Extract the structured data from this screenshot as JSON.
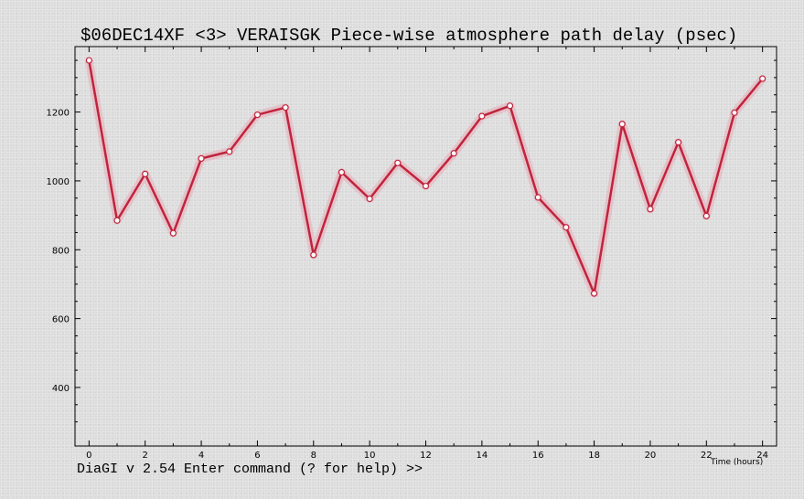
{
  "title": "$06DEC14XF <3>  VERAISGK  Piece-wise atmosphere path delay (psec)",
  "status_line": "DiaGI v 2.54  Enter command (? for help) >>",
  "colors": {
    "line": "#c0243c",
    "halo": "#e8a0b0",
    "marker_fill": "#ffffff",
    "frame": "#000000"
  },
  "chart_data": {
    "type": "line",
    "title": "$06DEC14XF <3>  VERAISGK  Piece-wise atmosphere path delay (psec)",
    "xlabel": "Time (hours)",
    "ylabel": "",
    "xlim": [
      -0.5,
      24.5
    ],
    "ylim": [
      230,
      1390
    ],
    "x_ticks": [
      0,
      2,
      4,
      6,
      8,
      10,
      12,
      14,
      16,
      18,
      20,
      22,
      24
    ],
    "y_ticks": [
      400,
      600,
      800,
      1000,
      1200
    ],
    "grid": false,
    "series": [
      {
        "x": [
          0,
          1,
          2,
          3,
          4,
          5,
          6,
          7,
          8,
          9,
          10,
          11,
          12,
          13,
          14,
          15,
          16,
          17,
          18,
          19,
          20,
          21,
          22,
          23,
          24
        ],
        "values": [
          1350,
          885,
          1020,
          848,
          1065,
          1085,
          1192,
          1213,
          785,
          1025,
          948,
          1052,
          985,
          1080,
          1188,
          1218,
          952,
          865,
          673,
          1165,
          918,
          1112,
          898,
          1198,
          1297
        ]
      }
    ]
  }
}
